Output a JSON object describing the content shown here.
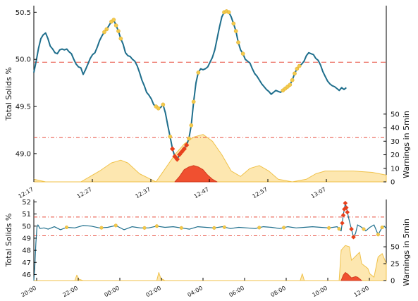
{
  "chart_data": [
    {
      "type": "line",
      "ylabel": "Total Solids %",
      "ylabel_right": "Warnings in 5min",
      "x_ticks": [
        "12:17",
        "12:27",
        "12:37",
        "12:47",
        "12:57",
        "13:07"
      ],
      "y_ticks": [
        "49.0",
        "49.5",
        "50.0",
        "50.5"
      ],
      "y2_ticks": [
        "0",
        "10",
        "20",
        "30",
        "40",
        "50"
      ],
      "ylim": [
        48.7,
        50.57
      ],
      "y2lim": [
        0,
        130
      ],
      "upper_limit": 49.97,
      "lower_limit": 49.17,
      "colors": {
        "line": "#1e6e8c",
        "upper_limit": "#e74c3c",
        "lower_limit": "#e74c3c",
        "yellow_fill": "#fde7b0",
        "yellow_line": "#f0c24a",
        "red_fill": "#f05030",
        "red_line": "#d23c1e",
        "warn_yellow": "#f2c94c",
        "warn_red": "#e8401c"
      },
      "series_x_minutes": [
        0,
        1,
        2,
        3,
        4,
        5,
        6,
        7,
        8,
        9,
        10,
        11,
        12,
        13,
        14,
        15,
        16,
        17,
        18,
        19,
        20,
        21,
        22,
        23,
        24,
        25,
        26,
        27,
        28,
        29,
        30,
        31,
        32,
        33,
        34,
        35,
        36,
        37,
        38,
        39,
        40,
        41,
        42,
        43,
        44,
        45,
        46,
        47,
        48,
        49,
        50,
        51,
        52,
        53,
        54,
        55,
        56,
        57,
        58,
        59,
        60,
        61,
        62,
        63,
        64,
        65,
        66,
        67,
        68,
        69,
        70,
        71,
        72,
        73,
        74,
        75,
        76,
        77,
        78,
        79,
        80,
        81,
        82,
        83,
        84,
        85,
        86,
        87,
        88,
        89,
        90,
        91,
        92,
        93,
        94,
        95,
        96,
        97,
        98,
        99,
        100,
        101,
        102,
        103,
        104,
        105,
        106,
        107,
        108,
        109,
        110,
        111,
        112,
        113,
        114,
        115,
        116,
        117,
        118,
        119,
        120,
        121,
        122,
        123,
        124,
        125,
        126,
        127,
        128,
        129,
        130,
        131,
        132,
        133,
        134,
        135,
        136,
        137,
        138,
        139,
        140,
        141,
        142,
        143,
        144,
        145,
        146,
        147,
        148,
        149,
        150
      ],
      "series_values": [
        49.86,
        49.98,
        50.12,
        50.22,
        50.26,
        50.28,
        50.22,
        50.14,
        50.11,
        50.07,
        50.06,
        50.1,
        50.11,
        50.1,
        50.11,
        50.08,
        50.06,
        50.0,
        49.95,
        49.92,
        49.91,
        49.84,
        49.89,
        49.95,
        50.01,
        50.05,
        50.07,
        50.13,
        50.2,
        50.25,
        50.29,
        50.32,
        50.36,
        50.4,
        50.42,
        50.36,
        50.3,
        50.22,
        50.16,
        50.07,
        50.04,
        50.03,
        50.0,
        49.98,
        49.93,
        49.86,
        49.78,
        49.72,
        49.65,
        49.62,
        49.58,
        49.52,
        49.5,
        49.48,
        49.49,
        49.52,
        49.43,
        49.3,
        49.18,
        49.05,
        48.97,
        48.94,
        48.99,
        49.02,
        49.05,
        49.09,
        49.16,
        49.3,
        49.55,
        49.75,
        49.86,
        49.9,
        49.89,
        49.9,
        49.92,
        49.97,
        50.02,
        50.1,
        50.22,
        50.34,
        50.45,
        50.5,
        50.51,
        50.5,
        50.45,
        50.38,
        50.3,
        50.18,
        50.1,
        50.06,
        50.0,
        49.98,
        49.96,
        49.9,
        49.85,
        49.82,
        49.78,
        49.74,
        49.71,
        49.68,
        49.66,
        49.63,
        49.65,
        49.67,
        49.66,
        49.65,
        49.67,
        49.69,
        49.71,
        49.73,
        49.78,
        49.85,
        49.9,
        49.93,
        49.95,
        49.98,
        50.04,
        50.07,
        50.06,
        50.05,
        50.01,
        49.99,
        49.94,
        49.87,
        49.82,
        49.77,
        49.74,
        49.72,
        49.71,
        49.69,
        49.67,
        49.7,
        49.68,
        49.7
      ],
      "warning_points_yellow_x": [
        30,
        31,
        33,
        34,
        35,
        36,
        37,
        52,
        53,
        55,
        58,
        64,
        66,
        67,
        68,
        70,
        81,
        82,
        83,
        85,
        86,
        87,
        89,
        106,
        107,
        108,
        109,
        110,
        111,
        112,
        113
      ],
      "warning_points_red_x": [
        59,
        60,
        61,
        62,
        63,
        64,
        65
      ],
      "warnings_yellow_x": [
        0,
        5,
        10,
        20,
        28,
        33,
        37,
        40,
        45,
        52,
        56,
        60,
        64,
        68,
        72,
        76,
        80,
        84,
        88,
        92,
        96,
        100,
        104,
        110,
        116,
        120,
        124,
        130,
        136,
        144,
        150
      ],
      "warnings_yellow_values": [
        2,
        0,
        0,
        0,
        8,
        14,
        16,
        14,
        6,
        0,
        10,
        20,
        28,
        33,
        35,
        30,
        20,
        8,
        4,
        10,
        12,
        8,
        2,
        0,
        2,
        6,
        8,
        8,
        8,
        7,
        5
      ],
      "warnings_red_x": [
        60,
        62,
        64,
        66,
        68,
        70,
        72,
        74,
        76,
        78
      ],
      "warnings_red_values": [
        0,
        4,
        9,
        11,
        12,
        11,
        9,
        5,
        2,
        0
      ]
    },
    {
      "type": "line",
      "ylabel": "Total Solids %",
      "ylabel_right": "Warnings in 5min",
      "x_ticks": [
        "20:00",
        "22:00",
        "00:00",
        "02:00",
        "04:00",
        "06:00",
        "08:00",
        "10:00",
        "12:00"
      ],
      "y_ticks": [
        "46",
        "47",
        "48",
        "49",
        "50",
        "51",
        "52"
      ],
      "y2_ticks": [
        "0",
        "25",
        "50"
      ],
      "ylim": [
        45.5,
        52.2
      ],
      "y2lim": [
        0,
        120
      ],
      "upper_limit": 50.75,
      "lower_limit": 49.2,
      "series_x_hours": [
        0,
        0.05,
        0.1,
        0.15,
        0.2,
        0.3,
        0.5,
        0.7,
        1.0,
        1.3,
        1.6,
        2.0,
        2.4,
        2.8,
        3.2,
        3.6,
        4.0,
        4.4,
        4.8,
        5.2,
        5.6,
        6.0,
        6.4,
        6.8,
        7.2,
        7.6,
        8.0,
        8.4,
        8.8,
        9.2,
        9.6,
        10.0,
        10.4,
        10.8,
        11.2,
        11.6,
        12.0,
        12.4,
        12.8,
        13.2,
        13.6,
        14.0,
        14.4,
        14.8,
        15.0,
        15.1,
        15.2,
        15.4,
        15.6,
        15.7,
        15.8,
        16.0,
        16.2,
        16.4,
        16.6,
        16.8,
        17.0,
        17.1,
        17.2
      ],
      "series_values": [
        45.5,
        46.8,
        48.6,
        49.9,
        50.1,
        49.8,
        49.85,
        49.75,
        49.95,
        49.7,
        49.9,
        49.85,
        50.05,
        50.0,
        49.85,
        49.9,
        50.05,
        49.7,
        49.95,
        49.85,
        49.85,
        50.0,
        49.9,
        49.95,
        49.85,
        49.75,
        49.95,
        49.9,
        49.85,
        49.95,
        49.8,
        49.9,
        49.85,
        49.8,
        49.95,
        49.9,
        49.8,
        49.95,
        49.85,
        49.9,
        49.95,
        49.9,
        49.85,
        49.95,
        49.6,
        50.9,
        51.9,
        50.4,
        49.1,
        49.4,
        50.1,
        49.9,
        49.6,
        49.9,
        50.1,
        49.3,
        49.9,
        50.0,
        49.8
      ],
      "warning_points_yellow_x": [
        1.6,
        3.3,
        4.0,
        5.4,
        6.0,
        7.2,
        8.8,
        9.3,
        11.0,
        12.2,
        14.4,
        14.9,
        15.6,
        16.1,
        16.8,
        17.0
      ],
      "warning_points_red_x": [
        15.05,
        15.1,
        15.15,
        15.2,
        15.25,
        15.3,
        15.5,
        15.6
      ],
      "warnings_yellow_x": [
        0,
        2,
        2.1,
        2.2,
        2.4,
        6,
        6.1,
        6.2,
        6.4,
        13,
        13.1,
        13.2,
        14.9,
        15.0,
        15.2,
        15.4,
        15.5,
        15.7,
        15.9,
        16.0,
        16.3,
        16.4,
        16.6,
        16.8,
        17.0,
        17.2
      ],
      "warnings_yellow_values": [
        0,
        0,
        8,
        2,
        0,
        0,
        12,
        3,
        0,
        0,
        10,
        0,
        0,
        45,
        52,
        50,
        30,
        36,
        42,
        25,
        18,
        10,
        5,
        35,
        40,
        25
      ],
      "warnings_red_x": [
        15.0,
        15.1,
        15.2,
        15.3,
        15.5,
        15.7,
        15.8,
        16.0
      ],
      "warnings_red_values": [
        0,
        8,
        12,
        10,
        4,
        6,
        5,
        0
      ]
    }
  ]
}
